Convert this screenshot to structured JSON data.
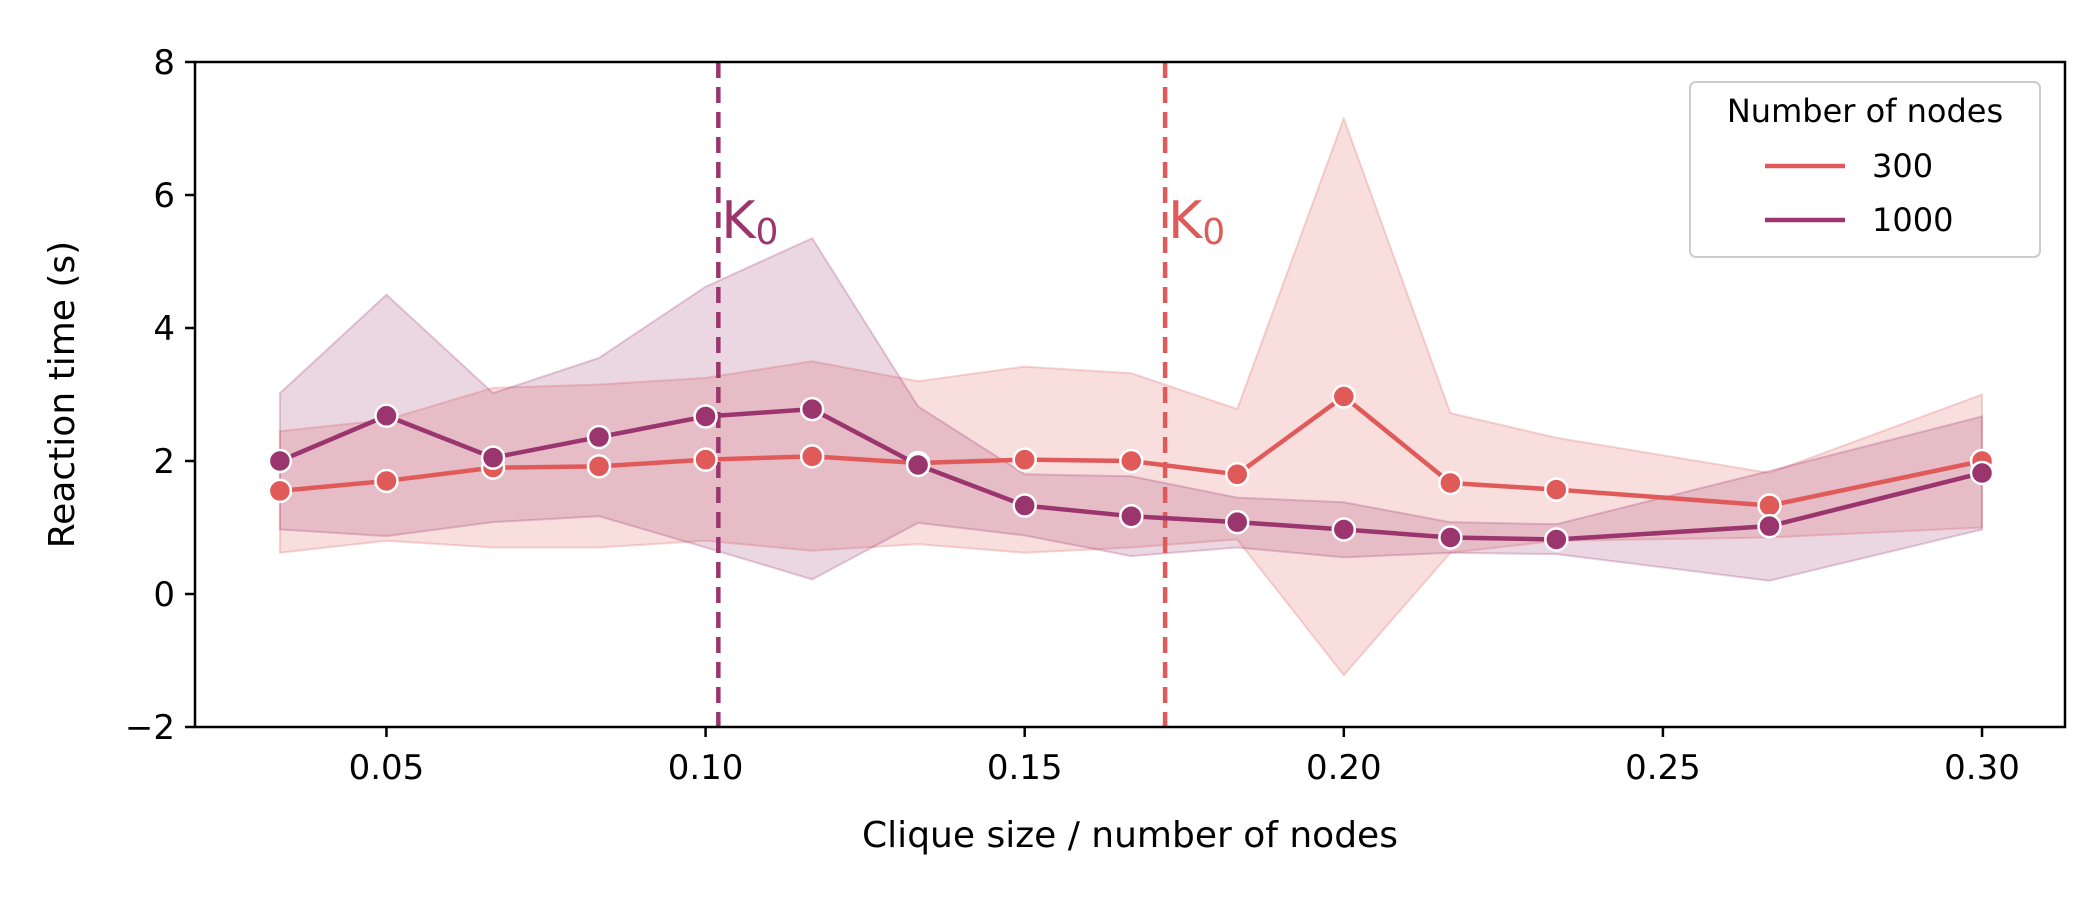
{
  "chart_data": {
    "type": "line",
    "xlabel": "Clique size / number of nodes",
    "ylabel": "Reaction time (s)",
    "xlim": [
      0.02,
      0.313
    ],
    "ylim": [
      -2,
      8
    ],
    "x_ticks": [
      "0.05",
      "0.10",
      "0.15",
      "0.20",
      "0.25",
      "0.30"
    ],
    "y_ticks": [
      "−2",
      "0",
      "2",
      "4",
      "6",
      "8"
    ],
    "grid": false,
    "legend": {
      "title": "Number of nodes",
      "placement": "top-right"
    },
    "series": [
      {
        "name": "300",
        "color": "#e05a5a",
        "points": [
          {
            "x": 0.0333,
            "y": 1.55,
            "lo": 0.62,
            "hi": 2.45
          },
          {
            "x": 0.05,
            "y": 1.7,
            "lo": 0.8,
            "hi": 2.62
          },
          {
            "x": 0.0667,
            "y": 1.9,
            "lo": 0.7,
            "hi": 3.1
          },
          {
            "x": 0.0833,
            "y": 1.92,
            "lo": 0.7,
            "hi": 3.15
          },
          {
            "x": 0.1,
            "y": 2.02,
            "lo": 0.8,
            "hi": 3.25
          },
          {
            "x": 0.1167,
            "y": 2.07,
            "lo": 0.65,
            "hi": 3.5
          },
          {
            "x": 0.1333,
            "y": 1.97,
            "lo": 0.75,
            "hi": 3.2
          },
          {
            "x": 0.15,
            "y": 2.02,
            "lo": 0.62,
            "hi": 3.42
          },
          {
            "x": 0.1667,
            "y": 2.0,
            "lo": 0.7,
            "hi": 3.32
          },
          {
            "x": 0.1833,
            "y": 1.8,
            "lo": 0.82,
            "hi": 2.78
          },
          {
            "x": 0.2,
            "y": 2.97,
            "lo": -1.22,
            "hi": 7.15
          },
          {
            "x": 0.2167,
            "y": 1.67,
            "lo": 0.62,
            "hi": 2.72
          },
          {
            "x": 0.2333,
            "y": 1.57,
            "lo": 0.8,
            "hi": 2.35
          },
          {
            "x": 0.2667,
            "y": 1.33,
            "lo": 0.85,
            "hi": 1.82
          },
          {
            "x": 0.3,
            "y": 2.0,
            "lo": 1.0,
            "hi": 3.0
          }
        ]
      },
      {
        "name": "1000",
        "color": "#9b356e",
        "points": [
          {
            "x": 0.0333,
            "y": 2.0,
            "lo": 0.97,
            "hi": 3.02
          },
          {
            "x": 0.05,
            "y": 2.68,
            "lo": 0.87,
            "hi": 4.5
          },
          {
            "x": 0.0667,
            "y": 2.05,
            "lo": 1.08,
            "hi": 3.02
          },
          {
            "x": 0.0833,
            "y": 2.36,
            "lo": 1.17,
            "hi": 3.55
          },
          {
            "x": 0.1,
            "y": 2.67,
            "lo": 0.7,
            "hi": 4.62
          },
          {
            "x": 0.1167,
            "y": 2.78,
            "lo": 0.22,
            "hi": 5.35
          },
          {
            "x": 0.1333,
            "y": 1.94,
            "lo": 1.07,
            "hi": 2.82
          },
          {
            "x": 0.15,
            "y": 1.33,
            "lo": 0.88,
            "hi": 1.8
          },
          {
            "x": 0.1667,
            "y": 1.17,
            "lo": 0.57,
            "hi": 1.77
          },
          {
            "x": 0.1833,
            "y": 1.08,
            "lo": 0.7,
            "hi": 1.45
          },
          {
            "x": 0.2,
            "y": 0.97,
            "lo": 0.55,
            "hi": 1.38
          },
          {
            "x": 0.2167,
            "y": 0.85,
            "lo": 0.62,
            "hi": 1.08
          },
          {
            "x": 0.2333,
            "y": 0.82,
            "lo": 0.6,
            "hi": 1.05
          },
          {
            "x": 0.2667,
            "y": 1.02,
            "lo": 0.2,
            "hi": 1.85
          },
          {
            "x": 0.3,
            "y": 1.82,
            "lo": 0.97,
            "hi": 2.67
          }
        ]
      }
    ],
    "annotations": [
      {
        "label": "K",
        "subscript": "0",
        "x": 0.102,
        "series": "1000",
        "color": "#9b356e"
      },
      {
        "label": "K",
        "subscript": "0",
        "x": 0.172,
        "series": "300",
        "color": "#e05a5a"
      }
    ]
  }
}
